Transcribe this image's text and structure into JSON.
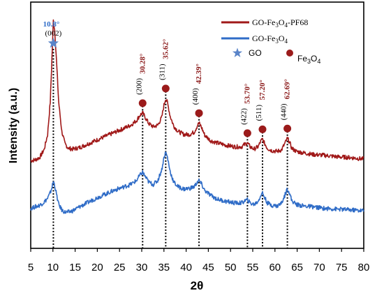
{
  "chart_data": {
    "type": "line",
    "xlabel": "2θ",
    "ylabel": "Intensity (a.u.)",
    "xlim": [
      5,
      80
    ],
    "x_ticks": [
      5,
      10,
      15,
      20,
      25,
      30,
      35,
      40,
      45,
      50,
      55,
      60,
      65,
      70,
      75,
      80
    ],
    "grid": false,
    "legend_position": "top-right",
    "legend": {
      "series1_label": "GO-Fe",
      "series1_sub1": "3",
      "series1_mid": "O",
      "series1_sub2": "4",
      "series1_suffix": "-PF68",
      "series2_label": "GO-Fe",
      "series2_sub1": "3",
      "series2_mid": "O",
      "series2_sub2": "4",
      "marker_go": "GO",
      "marker_fe_prefix": "Fe",
      "marker_fe_sub1": "3",
      "marker_fe_mid": "O",
      "marker_fe_sub2": "4"
    },
    "series": [
      {
        "name": "GO-Fe3O4-PF68",
        "color": "#a01818",
        "x": [
          5,
          6,
          7,
          8,
          8.8,
          9.4,
          9.8,
          10.1,
          10.4,
          10.8,
          11.3,
          12,
          12.7,
          13.5,
          14.5,
          16,
          18,
          20,
          22,
          24,
          26,
          27.5,
          28.8,
          29.6,
          30.2,
          30.8,
          31.6,
          32.6,
          33.6,
          34.5,
          35.0,
          35.4,
          35.8,
          36.4,
          37.2,
          38.2,
          39.5,
          40.8,
          41.8,
          42.5,
          42.9,
          43.4,
          44.2,
          45.5,
          47,
          49,
          51,
          52.5,
          53.3,
          53.8,
          54.4,
          55.3,
          56.2,
          56.8,
          57.2,
          57.6,
          58.3,
          59.3,
          60.5,
          61.5,
          62.3,
          62.8,
          63.2,
          63.8,
          64.8,
          66.5,
          68.5,
          71,
          74,
          77,
          80
        ],
        "y": [
          5.7,
          5.75,
          5.9,
          6.4,
          7.4,
          9.5,
          12.5,
          14.8,
          14.2,
          12.2,
          9.5,
          7.6,
          6.8,
          6.5,
          6.45,
          6.55,
          6.8,
          7.05,
          7.3,
          7.55,
          7.8,
          8.0,
          8.3,
          8.65,
          8.8,
          8.5,
          8.1,
          7.9,
          8.0,
          8.5,
          9.3,
          9.75,
          9.45,
          8.6,
          7.95,
          7.6,
          7.4,
          7.4,
          7.55,
          7.95,
          8.15,
          7.9,
          7.35,
          7.0,
          6.85,
          6.7,
          6.6,
          6.6,
          6.78,
          6.85,
          6.6,
          6.45,
          6.6,
          6.95,
          7.1,
          6.85,
          6.5,
          6.35,
          6.3,
          6.4,
          6.85,
          7.15,
          6.95,
          6.5,
          6.3,
          6.2,
          6.1,
          6.05,
          5.95,
          5.9,
          5.8
        ]
      },
      {
        "name": "GO-Fe3O4",
        "color": "#2f6cc7",
        "x": [
          5,
          6,
          7,
          8,
          8.8,
          9.4,
          9.8,
          10.1,
          10.4,
          10.8,
          11.3,
          12,
          12.7,
          13.5,
          14.5,
          16,
          18,
          20,
          22,
          24,
          26,
          27.5,
          28.8,
          29.6,
          30.2,
          30.8,
          31.6,
          32.6,
          33.6,
          34.5,
          35.0,
          35.4,
          35.8,
          36.4,
          37.2,
          38.2,
          39.5,
          40.8,
          41.8,
          42.5,
          42.9,
          43.4,
          44.2,
          45.5,
          47,
          49,
          51,
          52.5,
          53.3,
          53.8,
          54.4,
          55.3,
          56.2,
          56.8,
          57.2,
          57.6,
          58.3,
          59.3,
          60.5,
          61.5,
          62.3,
          62.8,
          63.2,
          63.8,
          64.8,
          66.5,
          68.5,
          71,
          74,
          77,
          80
        ],
        "y": [
          2.6,
          2.7,
          2.8,
          3.0,
          3.25,
          3.6,
          4.0,
          4.35,
          4.1,
          3.5,
          2.85,
          2.5,
          2.35,
          2.35,
          2.45,
          2.7,
          3.0,
          3.3,
          3.55,
          3.8,
          4.0,
          4.15,
          4.4,
          4.75,
          4.95,
          4.65,
          4.3,
          4.15,
          4.4,
          5.1,
          5.9,
          6.25,
          5.9,
          5.0,
          4.3,
          4.0,
          3.85,
          3.9,
          4.0,
          4.3,
          4.4,
          4.2,
          3.75,
          3.45,
          3.2,
          3.05,
          2.95,
          2.95,
          3.1,
          3.15,
          2.95,
          2.85,
          3.05,
          3.45,
          3.6,
          3.35,
          2.95,
          2.8,
          2.75,
          2.95,
          3.5,
          3.9,
          3.65,
          3.1,
          2.85,
          2.75,
          2.7,
          2.6,
          2.55,
          2.5,
          2.45
        ]
      }
    ],
    "annotations": [
      {
        "x": 10.1,
        "angle": "10.8°",
        "hkl": "(002)",
        "marker": "star"
      },
      {
        "x": 30.2,
        "angle": "30.28°",
        "hkl": "(200)",
        "marker": "dot"
      },
      {
        "x": 35.4,
        "angle": "35.62°",
        "hkl": "(311)",
        "marker": "dot"
      },
      {
        "x": 42.9,
        "angle": "42.39°",
        "hkl": "(400)",
        "marker": "dot"
      },
      {
        "x": 53.8,
        "angle": "53.70°",
        "hkl": "(422)",
        "marker": "dot"
      },
      {
        "x": 57.2,
        "angle": "57.20°",
        "hkl": "(511)",
        "marker": "dot"
      },
      {
        "x": 62.8,
        "angle": "62.69°",
        "hkl": "(440)",
        "marker": "dot"
      }
    ],
    "colors": {
      "peak_label": "#8b1a1a",
      "go_label": "#2f6cc7",
      "marker_dot": "#9b1b1b",
      "marker_star": "#5a84c8"
    }
  }
}
